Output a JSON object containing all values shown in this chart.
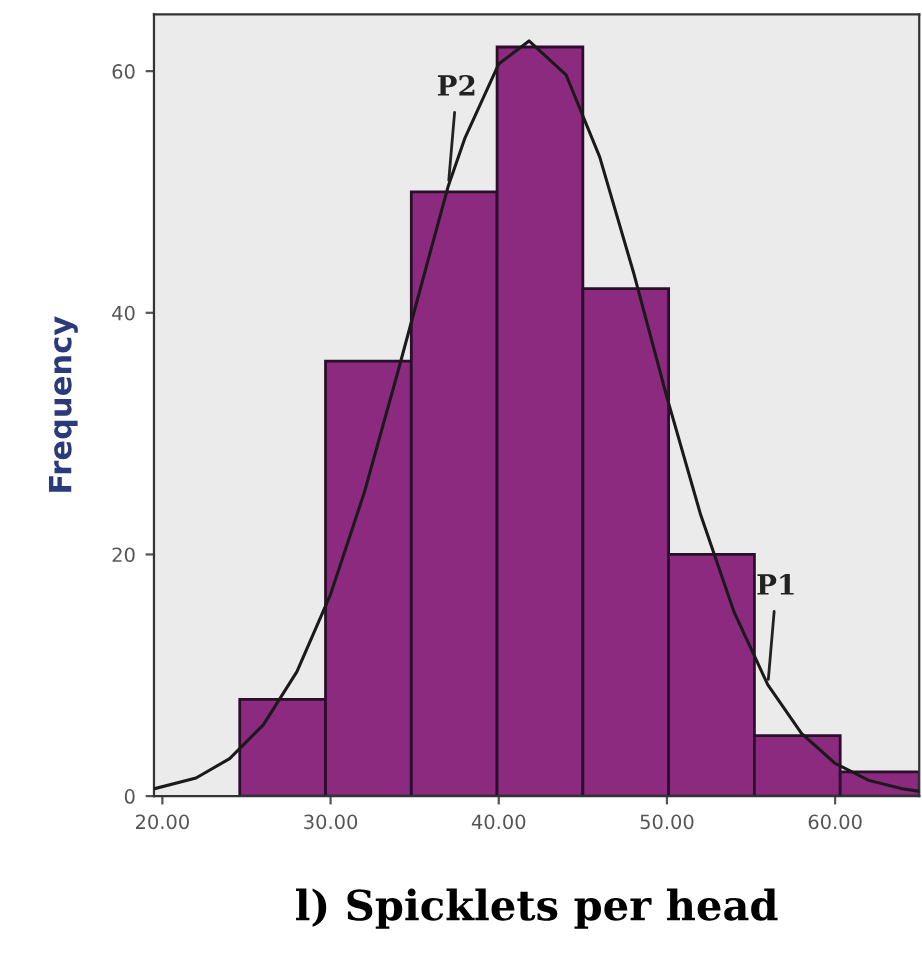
{
  "chart_data": {
    "type": "histogram",
    "xlabel": "l) Spicklets per head",
    "ylabel": "Frequency",
    "bins": [
      24.6,
      29.7,
      34.8,
      39.9,
      45.0,
      50.1,
      55.2,
      60.3,
      65.0
    ],
    "values": [
      8,
      36,
      50,
      62,
      42,
      20,
      5,
      2
    ],
    "color": "#8b2a7f",
    "series": [
      {
        "type": "line",
        "color": "#1a1a1a",
        "x": [
          19.5,
          22,
          24,
          26,
          28,
          30,
          32,
          34,
          36,
          37,
          38,
          40,
          41.8,
          44,
          46,
          48,
          50,
          52,
          54,
          56,
          58,
          60,
          62,
          64,
          65
        ],
        "values": [
          0.6,
          1.5,
          3.1,
          5.9,
          10.3,
          16.7,
          25.1,
          35.1,
          45.4,
          50.5,
          54.5,
          60.6,
          62.5,
          59.7,
          52.9,
          43.4,
          33.0,
          23.3,
          15.2,
          9.2,
          5.2,
          2.7,
          1.3,
          0.6,
          0.4
        ]
      }
    ],
    "annotations": [
      {
        "text": "P2",
        "x": 37,
        "y": 50.5
      },
      {
        "text": "P1",
        "x": 56,
        "y": 9.2
      }
    ],
    "xlim": [
      19.5,
      65
    ],
    "ylim": [
      0,
      64.7
    ],
    "xticks": [
      {
        "value": 20,
        "label": "20.00"
      },
      {
        "value": 30,
        "label": "30.00"
      },
      {
        "value": 40,
        "label": "40.00"
      },
      {
        "value": 50,
        "label": "50.00"
      },
      {
        "value": 60,
        "label": "60.00"
      }
    ],
    "yticks": [
      0,
      20,
      40,
      60
    ],
    "grid": false,
    "legend": false
  }
}
